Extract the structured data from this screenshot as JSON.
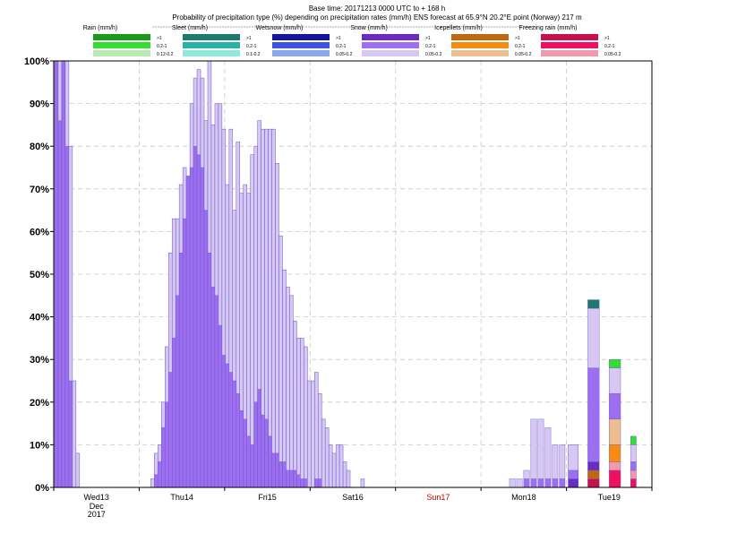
{
  "header": {
    "title_line1": "Base time: 20171213 0000 UTC to + 168 h",
    "title_line2": "Probability of precipitation type (%) depending on precipitation rates (mm/h) ENS forecast at 65.9°N  20.2°E point (Norway) 217 m"
  },
  "legend": {
    "groups": [
      {
        "name": "Rain (mm/h)",
        "levels": [
          ">1",
          "0.2-1",
          "0.12-0.2"
        ],
        "colors": [
          "#1a9a1a",
          "#33dd33",
          "#b9ebb0"
        ]
      },
      {
        "name": "Sleet (mm/h)",
        "levels": [
          ">1",
          "0.2-1",
          "0.1-0.2"
        ],
        "colors": [
          "#1a7a70",
          "#28b2a6",
          "#8ee8dd"
        ]
      },
      {
        "name": "Wetsnow (mm/h)",
        "levels": [
          ">1",
          "0.2-1",
          "0.05-0.2"
        ],
        "colors": [
          "#16169a",
          "#3a52e8",
          "#8aa8f0"
        ]
      },
      {
        "name": "Snow (mm/h)",
        "levels": [
          ">1",
          "0.2-1",
          "0.05-0.2"
        ],
        "colors": [
          "#6a2bc2",
          "#9d6ef0",
          "#d6c8f2"
        ]
      },
      {
        "name": "Icepellets (mm/h)",
        "levels": [
          ">1",
          "0.2-1",
          "0.05-0.2"
        ],
        "colors": [
          "#c06810",
          "#f88c10",
          "#efbe90"
        ]
      },
      {
        "name": "Freezing rain (mm/h)",
        "levels": [
          ">1",
          "0.2-1",
          "0.05-0.2"
        ],
        "colors": [
          "#c8104a",
          "#f01060",
          "#f29aaa"
        ]
      }
    ]
  },
  "axis": {
    "y_ticks": [
      "0%",
      "10%",
      "20%",
      "30%",
      "40%",
      "50%",
      "60%",
      "70%",
      "80%",
      "90%",
      "100%"
    ],
    "x_days": [
      {
        "label": "Wed13",
        "color": "#000000",
        "extra1": "Dec",
        "extra2": "2017"
      },
      {
        "label": "Thu14",
        "color": "#000000"
      },
      {
        "label": "Fri15",
        "color": "#000000"
      },
      {
        "label": "Sat16",
        "color": "#000000"
      },
      {
        "label": "Sun17",
        "color": "#cc0000"
      },
      {
        "label": "Mon18",
        "color": "#000000"
      },
      {
        "label": "Tue19",
        "color": "#000000"
      }
    ]
  },
  "chart_data": {
    "type": "bar",
    "stacked": true,
    "x_unit": "hours since base time",
    "ylim": [
      0,
      100
    ],
    "grid": true,
    "snow_series": {
      "name_low": "Snow 0.05-0.2",
      "name_mid": "Snow 0.2-1",
      "x": [
        0,
        1,
        2,
        3,
        4,
        5,
        6,
        7,
        8,
        9,
        10,
        11,
        12,
        13,
        14,
        15,
        16,
        17,
        18,
        19,
        20,
        21,
        22,
        23,
        24,
        25,
        26,
        27,
        28,
        29,
        30,
        31,
        32,
        33,
        34,
        35,
        36,
        37,
        38,
        39,
        40,
        41,
        42,
        43,
        44,
        45,
        46,
        47,
        48,
        49,
        50,
        51,
        52,
        53,
        54,
        55,
        56,
        57,
        58,
        59,
        60,
        61,
        62,
        63,
        64,
        65,
        66,
        67,
        68,
        69,
        70,
        71,
        72,
        73,
        74,
        75,
        76,
        77,
        78,
        79,
        80,
        81,
        82,
        83,
        84,
        85,
        86,
        87,
        88,
        89,
        90,
        91,
        92,
        93,
        94,
        95,
        96,
        97,
        98,
        99,
        100,
        101,
        102,
        103,
        104,
        105,
        106,
        107,
        108,
        109,
        110,
        111,
        112,
        113,
        114,
        115
      ],
      "total": [
        100,
        100,
        100,
        100,
        80,
        25,
        8,
        0,
        0,
        0,
        0,
        0,
        0,
        0,
        0,
        0,
        0,
        0,
        0,
        0,
        0,
        0,
        0,
        0,
        0,
        0,
        0,
        2,
        8,
        10,
        20,
        33,
        55,
        63,
        63,
        71,
        75,
        73,
        90,
        96,
        98,
        96,
        86,
        100,
        85,
        90,
        90,
        84,
        71,
        84,
        65,
        81,
        69,
        71,
        69,
        78,
        80,
        86,
        84,
        84,
        84,
        84,
        76,
        59,
        51,
        47,
        45,
        39,
        35,
        35,
        33,
        25,
        25,
        27,
        22,
        16,
        14,
        10,
        8,
        10,
        10,
        6,
        4,
        0,
        0,
        0,
        2,
        0,
        0,
        0,
        0,
        0,
        0,
        0,
        0,
        0,
        0,
        0,
        0,
        0,
        0,
        0,
        0,
        0,
        0,
        0,
        0,
        0,
        0,
        0,
        0,
        0,
        0,
        0,
        0,
        0
      ],
      "mid": [
        100,
        86,
        100,
        80,
        25,
        0,
        0,
        0,
        0,
        0,
        0,
        0,
        0,
        0,
        0,
        0,
        0,
        0,
        0,
        0,
        0,
        0,
        0,
        0,
        0,
        0,
        0,
        0,
        3,
        6,
        14,
        20,
        27,
        35,
        45,
        55,
        63,
        75,
        75,
        80,
        78,
        75,
        65,
        55,
        47,
        45,
        38,
        31,
        29,
        27,
        25,
        22,
        18,
        16,
        12,
        10,
        20,
        23,
        17,
        16,
        12,
        8,
        8,
        6,
        6,
        4,
        4,
        4,
        3,
        2,
        2,
        0,
        0,
        2,
        2,
        0,
        0,
        0,
        0,
        0,
        0,
        0,
        0,
        0,
        0,
        0,
        0,
        0,
        0,
        0,
        0,
        0,
        0,
        0,
        0,
        0,
        0,
        0,
        0,
        0,
        0,
        0,
        0,
        0,
        0,
        0,
        0,
        0,
        0,
        0,
        0,
        0,
        0,
        0,
        0,
        0
      ]
    },
    "late_bars": [
      {
        "x_hours": 128.0,
        "width_hours": 1.6,
        "stack": [
          {
            "series": "Snow 0.05-0.2",
            "value": 2
          }
        ]
      },
      {
        "x_hours": 130.0,
        "width_hours": 1.6,
        "stack": [
          {
            "series": "Snow 0.05-0.2",
            "value": 2
          }
        ]
      },
      {
        "x_hours": 132.0,
        "width_hours": 1.6,
        "stack": [
          {
            "series": "Snow 0.2-1",
            "value": 2
          },
          {
            "series": "Snow 0.05-0.2",
            "value": 2
          }
        ]
      },
      {
        "x_hours": 134.0,
        "width_hours": 1.6,
        "stack": [
          {
            "series": "Snow 0.2-1",
            "value": 2
          },
          {
            "series": "Snow 0.05-0.2",
            "value": 14
          }
        ]
      },
      {
        "x_hours": 136.0,
        "width_hours": 1.6,
        "stack": [
          {
            "series": "Snow 0.2-1",
            "value": 2
          },
          {
            "series": "Snow 0.05-0.2",
            "value": 14
          }
        ]
      },
      {
        "x_hours": 138.0,
        "width_hours": 1.6,
        "stack": [
          {
            "series": "Snow 0.2-1",
            "value": 2
          },
          {
            "series": "Snow 0.05-0.2",
            "value": 12
          }
        ]
      },
      {
        "x_hours": 140.0,
        "width_hours": 1.6,
        "stack": [
          {
            "series": "Snow 0.2-1",
            "value": 2
          },
          {
            "series": "Snow 0.05-0.2",
            "value": 8
          }
        ]
      },
      {
        "x_hours": 142.0,
        "width_hours": 1.6,
        "stack": [
          {
            "series": "Snow 0.2-1",
            "value": 2
          },
          {
            "series": "Snow 0.05-0.2",
            "value": 8
          }
        ]
      },
      {
        "x_hours": 144.5,
        "width_hours": 2.8,
        "stack": [
          {
            "series": "Snow 0.05-0.2",
            "value": 10
          }
        ]
      },
      {
        "x_hours": 144.5,
        "width_hours": 2.8,
        "stack": [
          {
            "series": "Snow >1",
            "value": 2
          },
          {
            "series": "Snow 0.2-1",
            "value": 2
          },
          {
            "series": "Snow 0.05-0.2",
            "value": 6
          }
        ]
      },
      {
        "x_hours": 150.0,
        "width_hours": 3.2,
        "stack": [
          {
            "series": "Freezing rain >1",
            "value": 2
          },
          {
            "series": "Icepellets >1",
            "value": 2
          },
          {
            "series": "Snow >1",
            "value": 2
          },
          {
            "series": "Snow 0.2-1",
            "value": 22
          },
          {
            "series": "Snow 0.05-0.2",
            "value": 14
          },
          {
            "series": "Sleet >1",
            "value": 2
          }
        ]
      },
      {
        "x_hours": 156.0,
        "width_hours": 3.2,
        "stack": [
          {
            "series": "Freezing rain 0.2-1",
            "value": 4
          },
          {
            "series": "Freezing rain 0.05-0.2",
            "value": 2
          },
          {
            "series": "Icepellets 0.2-1",
            "value": 4
          },
          {
            "series": "Icepellets 0.05-0.2",
            "value": 6
          },
          {
            "series": "Snow 0.2-1",
            "value": 6
          },
          {
            "series": "Snow 0.05-0.2",
            "value": 6
          },
          {
            "series": "Rain 0.2-1",
            "value": 2
          }
        ]
      },
      {
        "x_hours": 162.0,
        "width_hours": 1.6,
        "stack": [
          {
            "series": "Freezing rain 0.2-1",
            "value": 2
          },
          {
            "series": "Freezing rain 0.05-0.2",
            "value": 2
          },
          {
            "series": "Snow 0.2-1",
            "value": 2
          },
          {
            "series": "Snow 0.05-0.2",
            "value": 4
          },
          {
            "series": "Rain 0.2-1",
            "value": 2
          }
        ]
      }
    ]
  }
}
